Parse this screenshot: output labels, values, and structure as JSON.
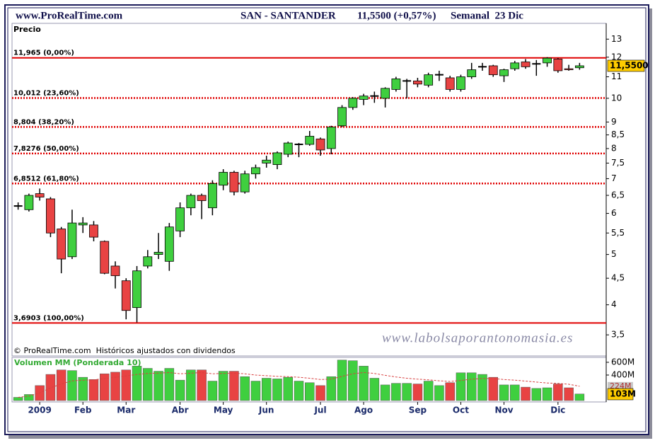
{
  "chart_data": {
    "type": "candlestick",
    "header": {
      "site": "www.ProRealTime.com",
      "symbol": "SAN - SANTANDER",
      "quote": "11,5500 (+0,57%)",
      "period": "Semanal  23 Dic"
    },
    "price_label": "Precio",
    "footnote": "© ProRealTime.com  Históricos ajustados con dividendos",
    "watermark": "www.labolsaporantonomasia.es",
    "categories": [
      null,
      null,
      "2009",
      null,
      null,
      null,
      "Feb",
      null,
      null,
      null,
      "Mar",
      null,
      null,
      null,
      null,
      "Abr",
      null,
      null,
      null,
      "May",
      null,
      null,
      null,
      "Jun",
      null,
      null,
      null,
      null,
      "Jul",
      null,
      null,
      null,
      "Ago",
      null,
      null,
      null,
      null,
      "Sep",
      null,
      null,
      null,
      "Oct",
      null,
      null,
      null,
      "Nov",
      null,
      null,
      null,
      null,
      "Dic",
      null,
      null
    ],
    "open": [
      6.2,
      6.1,
      6.55,
      6.4,
      5.6,
      4.95,
      5.7,
      5.7,
      5.3,
      4.75,
      4.45,
      3.95,
      4.75,
      5,
      4.85,
      5.55,
      6.15,
      6.5,
      6.15,
      6.8,
      7.2,
      6.6,
      7.15,
      7.5,
      7.45,
      7.8,
      8.15,
      8.15,
      8.35,
      8,
      8.85,
      9.6,
      9.95,
      10.1,
      10,
      10.4,
      10.8,
      10.8,
      10.6,
      11.1,
      10.95,
      10.4,
      11,
      11.5,
      11.55,
      11.05,
      11.4,
      11.75,
      11.65,
      11.7,
      11.9,
      11.4,
      11.45
    ],
    "high": [
      6.3,
      6.55,
      6.7,
      6.45,
      5.65,
      6.1,
      5.9,
      5.8,
      5.32,
      4.85,
      4.5,
      4.75,
      5.1,
      5.5,
      5.75,
      6.3,
      6.55,
      6.55,
      6.95,
      7.3,
      7.25,
      7.25,
      7.45,
      7.75,
      7.9,
      8.25,
      8.2,
      8.65,
      8.4,
      8.85,
      9.7,
      10.05,
      10.2,
      10.3,
      10.5,
      11,
      10.9,
      10.95,
      11.2,
      11.3,
      11.05,
      11.1,
      11.7,
      11.7,
      11.6,
      11.4,
      11.8,
      11.9,
      11.85,
      12,
      11.95,
      11.6,
      11.7
    ],
    "low": [
      6.1,
      6.05,
      6.35,
      5.4,
      4.6,
      4.9,
      5.5,
      5.3,
      4.58,
      4.3,
      3.75,
      3.7,
      4.7,
      4.9,
      4.65,
      5.4,
      5.95,
      5.85,
      5.95,
      6.65,
      6.5,
      6.55,
      7,
      7.35,
      7.3,
      7.7,
      7.7,
      8.1,
      7.75,
      7.8,
      8.8,
      9.5,
      9.7,
      9.8,
      9.6,
      10.3,
      10,
      10.5,
      10.5,
      10.8,
      10.3,
      10.3,
      10.9,
      11.3,
      11,
      10.75,
      11.3,
      11.4,
      11.05,
      11.5,
      11.2,
      11.3,
      11.35
    ],
    "close": [
      6.2,
      6.5,
      6.45,
      5.5,
      4.9,
      5.75,
      5.75,
      5.4,
      4.6,
      4.55,
      3.9,
      4.65,
      4.95,
      5.05,
      5.65,
      6.15,
      6.5,
      6.35,
      6.85,
      7.2,
      6.6,
      7.15,
      7.35,
      7.6,
      7.85,
      8.2,
      8.15,
      8.45,
      7.95,
      8.8,
      9.6,
      10,
      10.1,
      10.1,
      10.45,
      10.9,
      10.8,
      10.65,
      11.1,
      11.1,
      10.4,
      11,
      11.35,
      11.5,
      11.1,
      11.35,
      11.7,
      11.5,
      11.65,
      11.95,
      11.3,
      11.35,
      11.55
    ],
    "last_label": "11,5500",
    "log_scale": true,
    "ylim": [
      3.32,
      13.9
    ],
    "yticks": [
      {
        "value": 3.5,
        "label": "3,5"
      },
      4,
      {
        "value": 4.5,
        "label": "4,5"
      },
      5,
      {
        "value": 5.5,
        "label": "5,5"
      },
      6,
      {
        "value": 6.5,
        "label": "6,5"
      },
      7,
      {
        "value": 7.5,
        "label": "7,5"
      },
      8,
      {
        "value": 8.5,
        "label": "8,5"
      },
      9,
      10,
      11,
      12,
      13
    ],
    "levels": [
      {
        "value": 11.965,
        "label": "11,965 (0,00%)",
        "style": "solid"
      },
      {
        "value": 10.012,
        "label": "10,012 (23,60%)",
        "style": "dotted"
      },
      {
        "value": 8.804,
        "label": "8,804 (38,20%)",
        "style": "dotted"
      },
      {
        "value": 7.8276,
        "label": "7,8276 (50,00%)",
        "style": "dotted"
      },
      {
        "value": 6.8512,
        "label": "6,8512 (61,80%)",
        "style": "dotted"
      },
      {
        "value": 3.6903,
        "label": "3,6903 (100,00%)",
        "style": "solid"
      }
    ],
    "colors": {
      "up": "#3fcf3f",
      "down": "#e84343",
      "flat": "#000000",
      "level": "#e00000",
      "last_box": "#ffcc00",
      "ma": "#d84040",
      "ma_box": "#c8c8c8"
    },
    "volume": {
      "title": "Volumen MM (Ponderada 10)",
      "ylim": [
        0,
        655000000
      ],
      "yticks": [
        {
          "value": 600000000,
          "label": "600M"
        },
        {
          "value": 400000000,
          "label": "400M"
        }
      ],
      "values": [
        50000000,
        95000000,
        235000000,
        410000000,
        480000000,
        470000000,
        365000000,
        330000000,
        420000000,
        445000000,
        480000000,
        540000000,
        505000000,
        460000000,
        505000000,
        320000000,
        480000000,
        480000000,
        305000000,
        460000000,
        460000000,
        375000000,
        305000000,
        350000000,
        340000000,
        365000000,
        305000000,
        280000000,
        235000000,
        375000000,
        635000000,
        625000000,
        540000000,
        350000000,
        245000000,
        270000000,
        270000000,
        260000000,
        305000000,
        235000000,
        280000000,
        435000000,
        435000000,
        410000000,
        365000000,
        245000000,
        245000000,
        210000000,
        190000000,
        200000000,
        260000000,
        200000000,
        103000000
      ],
      "last_label": "103M",
      "ma": {
        "values": [
          50000000,
          70000000,
          120000000,
          200000000,
          260000000,
          310000000,
          320000000,
          325000000,
          345000000,
          365000000,
          385000000,
          410000000,
          425000000,
          430000000,
          440000000,
          420000000,
          430000000,
          440000000,
          420000000,
          425000000,
          430000000,
          420000000,
          400000000,
          390000000,
          380000000,
          375000000,
          365000000,
          350000000,
          330000000,
          335000000,
          380000000,
          420000000,
          440000000,
          425000000,
          395000000,
          370000000,
          350000000,
          335000000,
          325000000,
          310000000,
          300000000,
          315000000,
          335000000,
          345000000,
          345000000,
          330000000,
          320000000,
          305000000,
          290000000,
          275000000,
          270000000,
          255000000,
          224000000
        ],
        "last_label": "224M"
      }
    }
  }
}
